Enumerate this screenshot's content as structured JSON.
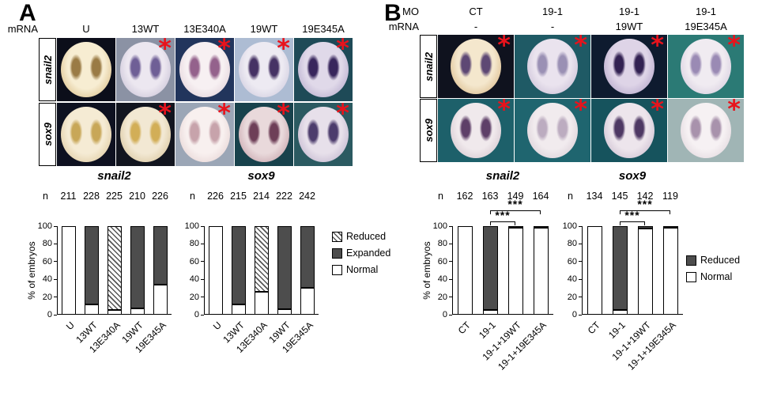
{
  "panelA": {
    "label": "A",
    "header": {
      "mrna_label": "mRNA",
      "columns": [
        "U",
        "13WT",
        "13E340A",
        "19WT",
        "19E345A"
      ]
    },
    "rows": [
      {
        "gene": "snail2",
        "tiles": [
          {
            "col": "U",
            "marker": ""
          },
          {
            "col": "13WT",
            "marker": "*"
          },
          {
            "col": "13E340A",
            "marker": "*"
          },
          {
            "col": "19WT",
            "marker": "*"
          },
          {
            "col": "19E345A",
            "marker": "*"
          }
        ]
      },
      {
        "gene": "sox9",
        "tiles": [
          {
            "col": "U",
            "marker": ""
          },
          {
            "col": "13WT",
            "marker": "*"
          },
          {
            "col": "13E340A",
            "marker": "*"
          },
          {
            "col": "19WT",
            "marker": "*"
          },
          {
            "col": "19E345A",
            "marker": "*"
          }
        ]
      }
    ]
  },
  "panelB": {
    "label": "B",
    "header": {
      "mo_label": "MO",
      "mrna_label": "mRNA",
      "mo_values": [
        "CT",
        "19-1",
        "19-1",
        "19-1"
      ],
      "mrna_values": [
        "-",
        "-",
        "19WT",
        "19E345A"
      ]
    },
    "rows": [
      {
        "gene": "snail2",
        "tiles": [
          {
            "col": "CT",
            "marker": "*"
          },
          {
            "col": "19-1",
            "marker": "*"
          },
          {
            "col": "19-1+19WT",
            "marker": "*"
          },
          {
            "col": "19-1+19E345A",
            "marker": "*"
          }
        ]
      },
      {
        "gene": "sox9",
        "tiles": [
          {
            "col": "CT",
            "marker": "*"
          },
          {
            "col": "19-1",
            "marker": "*"
          },
          {
            "col": "19-1+19WT",
            "marker": "*"
          },
          {
            "col": "19-1+19E345A",
            "marker": "*"
          }
        ]
      }
    ]
  },
  "legendA": {
    "items": [
      {
        "label": "Reduced",
        "style": "hatch"
      },
      {
        "label": "Expanded",
        "style": "dark"
      },
      {
        "label": "Normal",
        "style": "white"
      }
    ]
  },
  "legendB": {
    "items": [
      {
        "label": "Reduced",
        "style": "dark"
      },
      {
        "label": "Normal",
        "style": "white"
      }
    ]
  },
  "colors": {
    "asterisk": "#e8131c",
    "bar_dark": "#4d4d4d",
    "bar_normal": "#ffffff",
    "axis": "#000000"
  },
  "chart_data": [
    {
      "id": "chart-snail2-panelA",
      "type": "bar",
      "stacked": true,
      "title": "snail2",
      "n_label": "n",
      "n": [
        211,
        228,
        225,
        210,
        226
      ],
      "ylabel": "% of embryos",
      "xlabel": "",
      "ylim": [
        0,
        100
      ],
      "yticks": [
        0,
        20,
        40,
        60,
        80,
        100
      ],
      "categories": [
        "U",
        "13WT",
        "13E340A",
        "19WT",
        "19E345A"
      ],
      "series": [
        {
          "name": "Normal",
          "style": "white",
          "values": [
            100,
            12,
            5,
            7,
            34
          ]
        },
        {
          "name": "Expanded",
          "style": "dark",
          "values": [
            0,
            88,
            0,
            93,
            66
          ]
        },
        {
          "name": "Reduced",
          "style": "hatch",
          "values": [
            0,
            0,
            95,
            0,
            0
          ]
        }
      ],
      "significance": []
    },
    {
      "id": "chart-sox9-panelA",
      "type": "bar",
      "stacked": true,
      "title": "sox9",
      "n_label": "n",
      "n": [
        226,
        215,
        214,
        222,
        242
      ],
      "ylabel": "",
      "xlabel": "",
      "ylim": [
        0,
        100
      ],
      "yticks": [
        0,
        20,
        40,
        60,
        80,
        100
      ],
      "categories": [
        "U",
        "13WT",
        "13E340A",
        "19WT",
        "19E345A"
      ],
      "series": [
        {
          "name": "Normal",
          "style": "white",
          "values": [
            100,
            12,
            26,
            6,
            30
          ]
        },
        {
          "name": "Expanded",
          "style": "dark",
          "values": [
            0,
            88,
            0,
            94,
            70
          ]
        },
        {
          "name": "Reduced",
          "style": "hatch",
          "values": [
            0,
            0,
            74,
            0,
            0
          ]
        }
      ],
      "significance": []
    },
    {
      "id": "chart-snail2-panelB",
      "type": "bar",
      "stacked": true,
      "title": "snail2",
      "n_label": "n",
      "n": [
        162,
        163,
        149,
        164
      ],
      "ylabel": "% of embryos",
      "xlabel": "",
      "ylim": [
        0,
        100
      ],
      "yticks": [
        0,
        20,
        40,
        60,
        80,
        100
      ],
      "categories": [
        "CT",
        "19-1",
        "19-1+19WT",
        "19-1+19E345A"
      ],
      "series": [
        {
          "name": "Normal",
          "style": "white",
          "values": [
            100,
            5,
            98,
            99
          ]
        },
        {
          "name": "Reduced",
          "style": "dark",
          "values": [
            0,
            95,
            2,
            1
          ]
        }
      ],
      "significance": [
        {
          "from": 1,
          "to": 2,
          "label": "***",
          "row": 0
        },
        {
          "from": 1,
          "to": 3,
          "label": "***",
          "row": 1
        }
      ]
    },
    {
      "id": "chart-sox9-panelB",
      "type": "bar",
      "stacked": true,
      "title": "sox9",
      "n_label": "n",
      "n": [
        134,
        145,
        142,
        119
      ],
      "ylabel": "",
      "xlabel": "",
      "ylim": [
        0,
        100
      ],
      "yticks": [
        0,
        20,
        40,
        60,
        80,
        100
      ],
      "categories": [
        "CT",
        "19-1",
        "19-1+19WT",
        "19-1+19E345A"
      ],
      "series": [
        {
          "name": "Normal",
          "style": "white",
          "values": [
            100,
            5,
            97,
            98
          ]
        },
        {
          "name": "Reduced",
          "style": "dark",
          "values": [
            0,
            95,
            3,
            2
          ]
        }
      ],
      "significance": [
        {
          "from": 1,
          "to": 2,
          "label": "***",
          "row": 0
        },
        {
          "from": 1,
          "to": 3,
          "label": "***",
          "row": 1
        }
      ]
    }
  ]
}
